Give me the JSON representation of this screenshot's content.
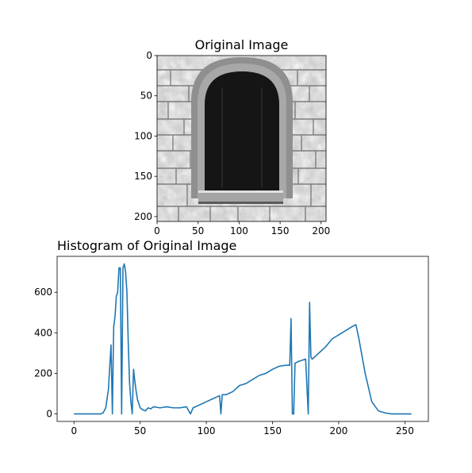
{
  "chart_data": [
    {
      "type": "image",
      "title": "Original Image",
      "xticks": [
        0,
        50,
        100,
        150,
        200
      ],
      "yticks": [
        0,
        50,
        100,
        150,
        200
      ],
      "xlim": [
        0,
        206
      ],
      "ylim": [
        206,
        0
      ],
      "colormap": "grayscale",
      "content": "stone wall with arched dark window"
    },
    {
      "type": "line",
      "title": "Histogram of Original Image",
      "xticks": [
        0,
        50,
        100,
        150,
        200,
        250
      ],
      "yticks": [
        0,
        200,
        400,
        600
      ],
      "xlim": [
        -12.75,
        267.75
      ],
      "ylim": [
        -37,
        777
      ],
      "line_color": "#1f77b4",
      "series": [
        {
          "x": [
            0,
            5,
            10,
            15,
            20,
            22,
            24,
            26,
            28,
            29,
            30,
            31,
            32,
            33,
            34,
            35,
            36,
            37,
            38,
            39,
            40,
            41,
            42,
            43,
            44,
            45,
            46,
            47,
            48,
            49,
            50,
            52,
            54,
            56,
            58,
            60,
            65,
            70,
            75,
            80,
            85,
            88,
            90,
            95,
            100,
            105,
            110,
            111,
            112,
            115,
            120,
            125,
            130,
            135,
            140,
            145,
            150,
            155,
            160,
            163,
            164,
            165,
            166,
            167,
            170,
            175,
            177,
            178,
            179,
            180,
            185,
            190,
            195,
            200,
            205,
            210,
            213,
            215,
            220,
            225,
            230,
            235,
            240,
            245,
            250,
            255
          ],
          "y": [
            0,
            0,
            0,
            0,
            0,
            5,
            30,
            120,
            340,
            0,
            430,
            480,
            580,
            600,
            720,
            720,
            0,
            720,
            740,
            700,
            600,
            350,
            150,
            60,
            0,
            220,
            160,
            110,
            70,
            50,
            30,
            20,
            15,
            30,
            25,
            35,
            30,
            35,
            30,
            30,
            35,
            0,
            30,
            45,
            60,
            75,
            90,
            0,
            95,
            95,
            110,
            140,
            150,
            170,
            190,
            200,
            220,
            235,
            240,
            240,
            470,
            0,
            0,
            250,
            260,
            270,
            0,
            550,
            280,
            270,
            300,
            330,
            370,
            390,
            410,
            430,
            440,
            380,
            200,
            60,
            15,
            5,
            0,
            0,
            0,
            0
          ]
        }
      ]
    }
  ]
}
